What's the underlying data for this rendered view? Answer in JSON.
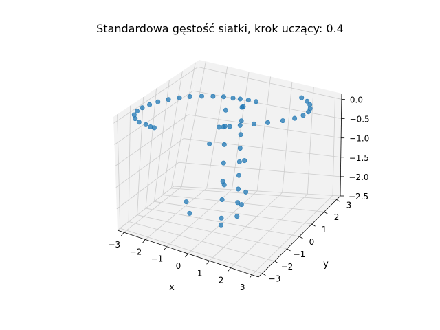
{
  "chart_data": {
    "type": "scatter",
    "projection": "3d",
    "title": "Standardowa gęstość siatki, krok uczący: 0.4",
    "xlabel": "x",
    "ylabel": "y",
    "zlabel": "",
    "xlim": [
      -3.3,
      3.3
    ],
    "ylim": [
      -3.3,
      3.3
    ],
    "zlim": [
      -2.5,
      0.15
    ],
    "xticks": [
      -3,
      -2,
      -1,
      0,
      1,
      2,
      3
    ],
    "yticks": [
      -3,
      -2,
      -1,
      0,
      1,
      2,
      3
    ],
    "zticks": [
      0.0,
      -0.5,
      -1.0,
      -1.5,
      -2.0,
      -2.5
    ],
    "xtick_labels": [
      "−3",
      "−2",
      "−1",
      "0",
      "1",
      "2",
      "3"
    ],
    "ytick_labels": [
      "−3",
      "−2",
      "−1",
      "0",
      "1",
      "2",
      "3"
    ],
    "ztick_labels": [
      "0.0",
      "−0.5",
      "−1.0",
      "−1.5",
      "−2.0",
      "−2.5"
    ],
    "grid": true,
    "marker_color": "#1f77b4",
    "pane_color": "#f2f2f2",
    "grid_color": "#cccccc",
    "series": [
      {
        "points": [
          [
            -2.0,
            -3.0,
            0.0
          ],
          [
            -2.4,
            -2.85,
            0.0
          ],
          [
            -2.75,
            -2.55,
            0.0
          ],
          [
            -3.0,
            -2.2,
            0.0
          ],
          [
            -3.1,
            -1.8,
            0.0
          ],
          [
            -3.1,
            -1.4,
            0.0
          ],
          [
            -3.0,
            -1.0,
            0.0
          ],
          [
            -2.85,
            -0.6,
            0.0
          ],
          [
            -2.6,
            -0.2,
            0.0
          ],
          [
            -2.3,
            0.15,
            0.0
          ],
          [
            -2.0,
            0.45,
            0.0
          ],
          [
            -1.6,
            0.7,
            0.0
          ],
          [
            -1.2,
            0.9,
            0.0
          ],
          [
            -0.8,
            1.05,
            0.0
          ],
          [
            -0.4,
            1.1,
            0.0
          ],
          [
            -0.1,
            1.15,
            0.0
          ],
          [
            0.25,
            1.2,
            0.0
          ],
          [
            0.6,
            1.2,
            0.0
          ],
          [
            -1.7,
            -3.15,
            0.0
          ],
          [
            -1.5,
            -3.2,
            0.0
          ],
          [
            1.2,
            -1.9,
            0.0
          ],
          [
            1.5,
            -1.6,
            0.0
          ],
          [
            1.9,
            -1.2,
            0.0
          ],
          [
            2.3,
            -0.8,
            0.0
          ],
          [
            2.7,
            -0.3,
            0.0
          ],
          [
            2.95,
            0.2,
            0.0
          ],
          [
            3.05,
            0.7,
            0.0
          ],
          [
            3.0,
            1.2,
            0.0
          ],
          [
            2.85,
            1.6,
            0.0
          ],
          [
            2.6,
            2.0,
            0.0
          ],
          [
            2.3,
            2.3,
            0.0
          ],
          [
            1.9,
            2.55,
            0.0
          ],
          [
            0.85,
            -2.15,
            0.0
          ],
          [
            1.0,
            -2.05,
            0.0
          ],
          [
            -0.3,
            -2.8,
            -1.55
          ],
          [
            -0.2,
            -2.7,
            -1.8
          ],
          [
            0.5,
            -2.3,
            -0.35
          ],
          [
            0.8,
            -1.6,
            -1.3
          ],
          [
            0.05,
            -0.25,
            0.0
          ],
          [
            0.05,
            -0.25,
            -0.35
          ],
          [
            0.05,
            -0.25,
            -0.75
          ],
          [
            0.05,
            -0.25,
            -1.15
          ],
          [
            0.05,
            -0.25,
            -1.55
          ],
          [
            0.05,
            -0.25,
            -1.95
          ],
          [
            0.05,
            -0.25,
            -2.35
          ],
          [
            0.05,
            -0.25,
            -2.5
          ],
          [
            0.45,
            0.35,
            0.0
          ],
          [
            0.45,
            0.35,
            -0.3
          ],
          [
            0.45,
            0.35,
            -0.6
          ],
          [
            0.45,
            0.35,
            -0.9
          ],
          [
            0.45,
            0.35,
            -1.2
          ],
          [
            0.45,
            0.35,
            -1.5
          ],
          [
            0.45,
            0.35,
            -1.8
          ],
          [
            0.45,
            0.35,
            -2.1
          ],
          [
            0.45,
            0.35,
            -2.4
          ],
          [
            0.9,
            -0.1,
            -1.05
          ],
          [
            1.05,
            -0.2,
            -1.7
          ],
          [
            0.2,
            0.9,
            -0.1
          ],
          [
            0.95,
            -0.35,
            -1.95
          ]
        ]
      }
    ]
  }
}
